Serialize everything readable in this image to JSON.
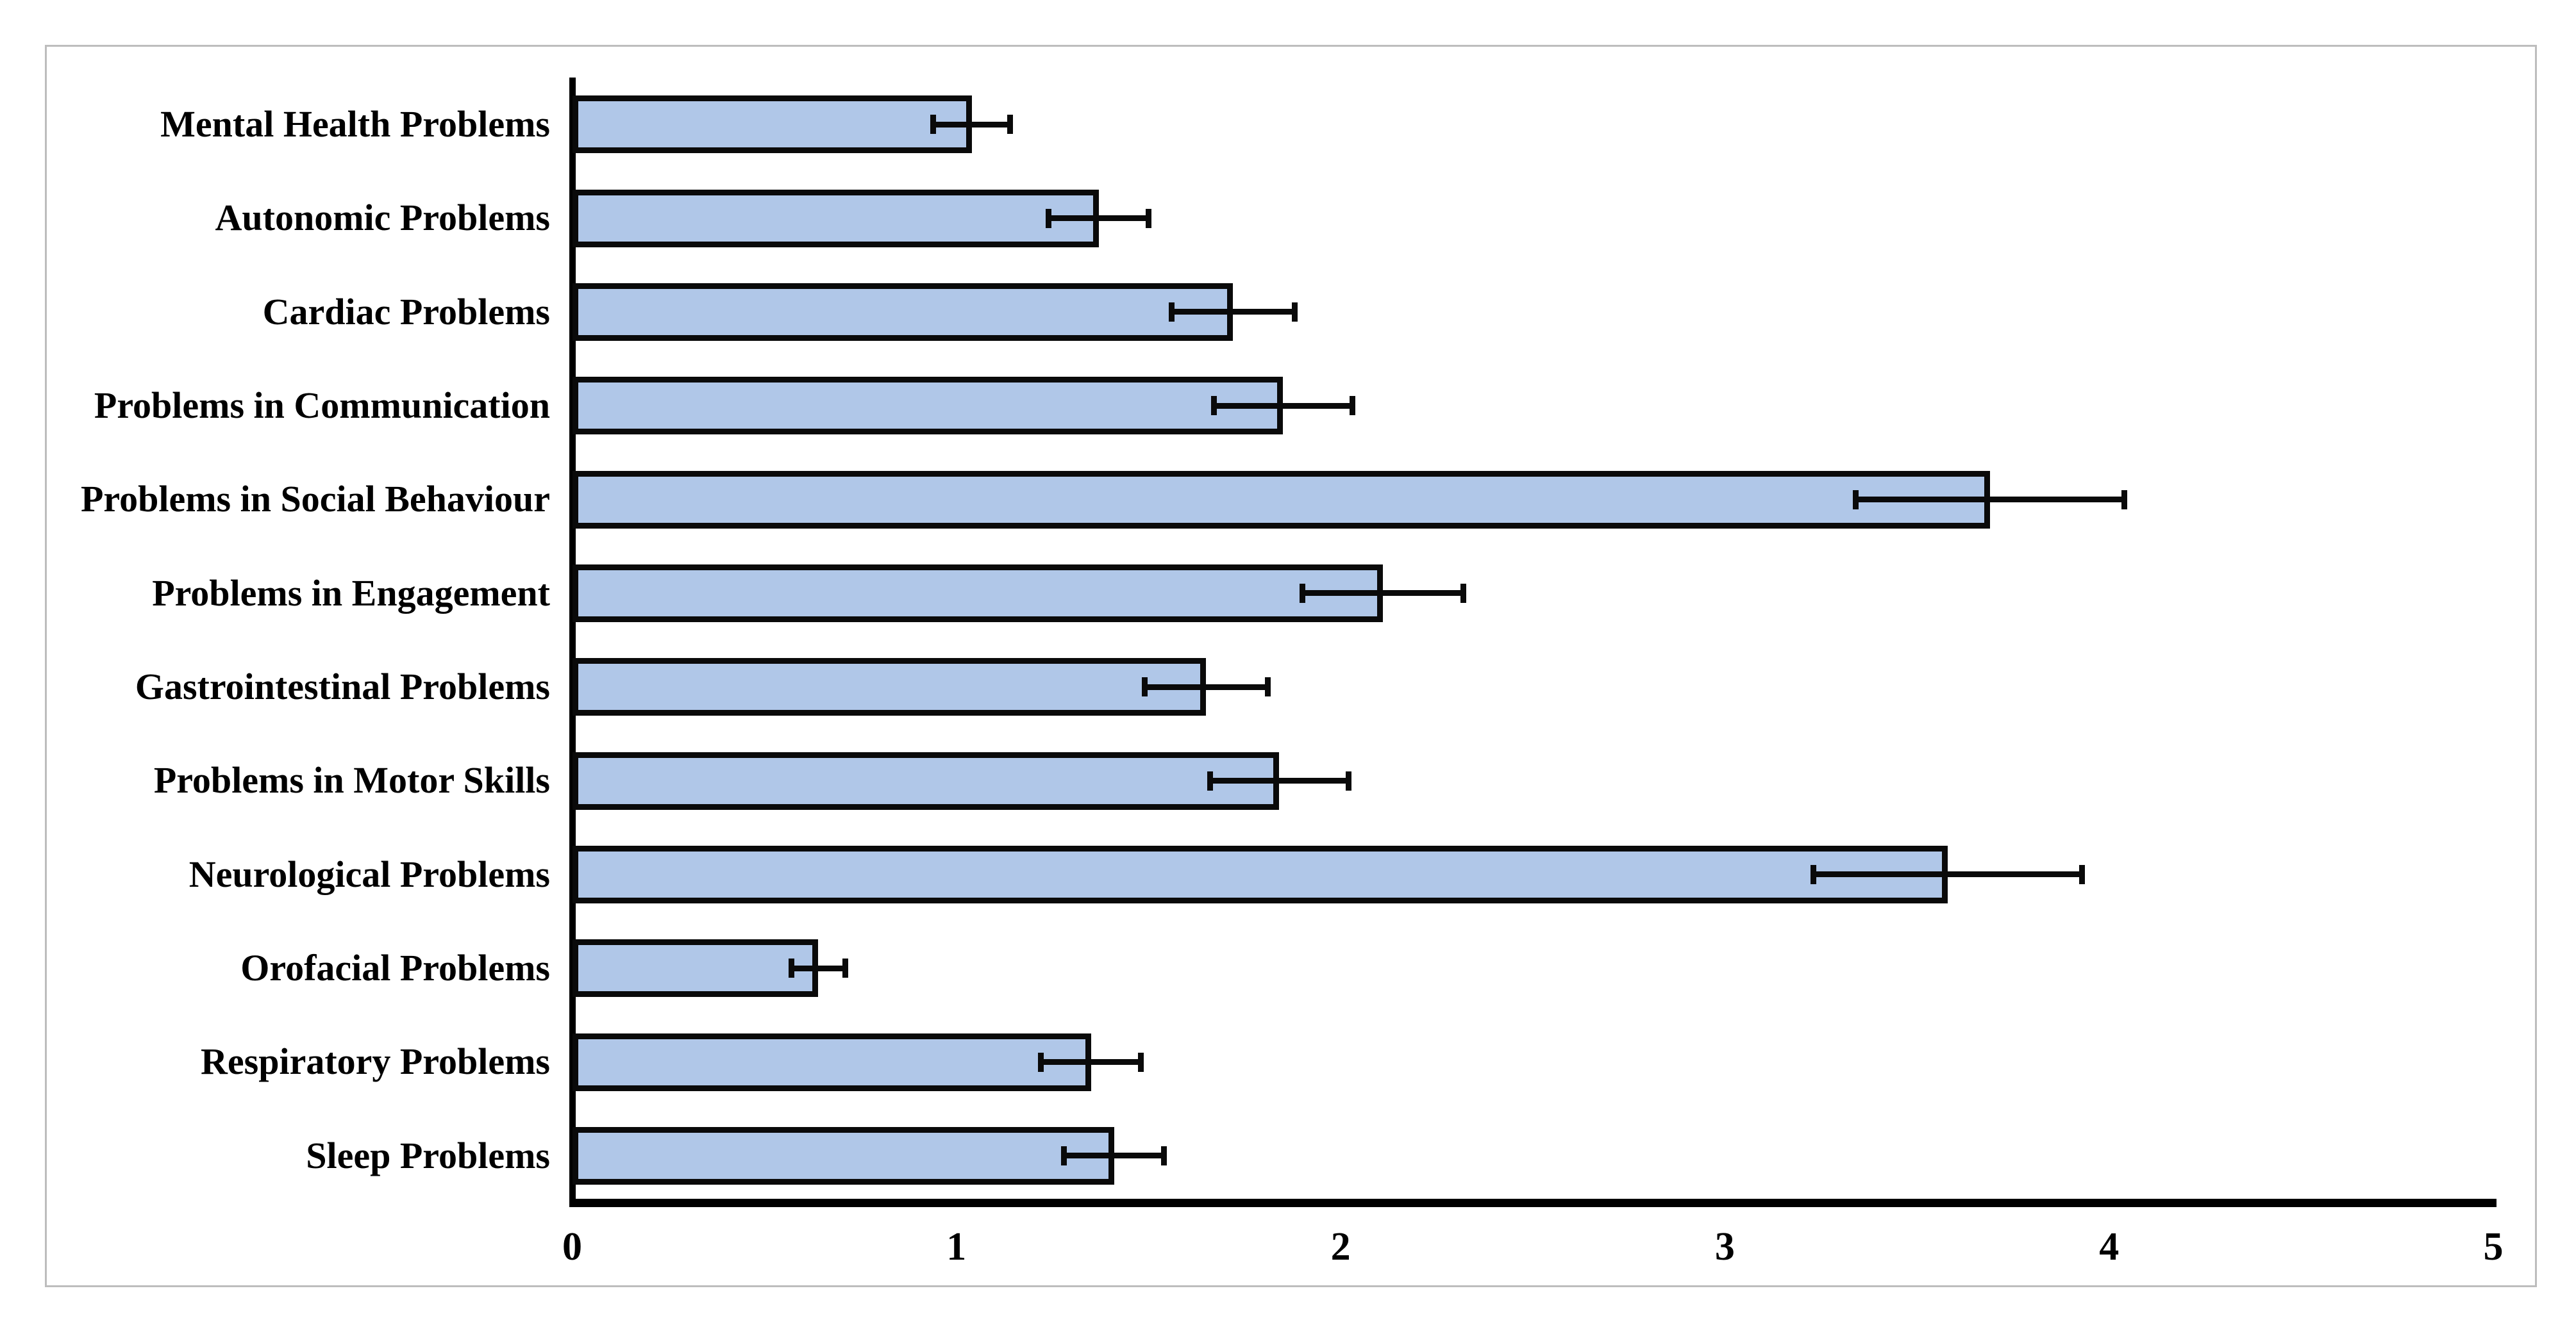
{
  "chart_data": {
    "type": "bar",
    "orientation": "horizontal",
    "title": "",
    "xlabel": "",
    "ylabel": "",
    "categories": [
      "Mental Health Problems",
      "Autonomic Problems",
      "Cardiac Problems",
      "Problems in Communication",
      "Problems in Social Behaviour",
      "Problems in Engagement",
      "Gastrointestinal Problems",
      "Problems in Motor Skills",
      "Neurological Problems",
      "Orofacial Problems",
      "Respiratory Problems",
      "Sleep Problems"
    ],
    "values": [
      1.04,
      1.37,
      1.72,
      1.85,
      3.69,
      2.11,
      1.65,
      1.84,
      3.58,
      0.64,
      1.35,
      1.41
    ],
    "errors": [
      0.1,
      0.13,
      0.16,
      0.18,
      0.35,
      0.21,
      0.16,
      0.18,
      0.35,
      0.07,
      0.13,
      0.13
    ],
    "error_bars": "symmetric",
    "xlim": [
      0,
      5
    ],
    "x_ticks": [
      "0",
      "1",
      "2",
      "3",
      "4",
      "5"
    ],
    "grid": false,
    "legend": false
  },
  "style": {
    "bar_fill": "#b0c7e8",
    "bar_border": "#0a0a0a",
    "error_bar_color": "#0a0a0a",
    "axis_color": "#000000",
    "frame_border": "#bdbdbd",
    "background": "#ffffff",
    "text_color": "#000000"
  }
}
